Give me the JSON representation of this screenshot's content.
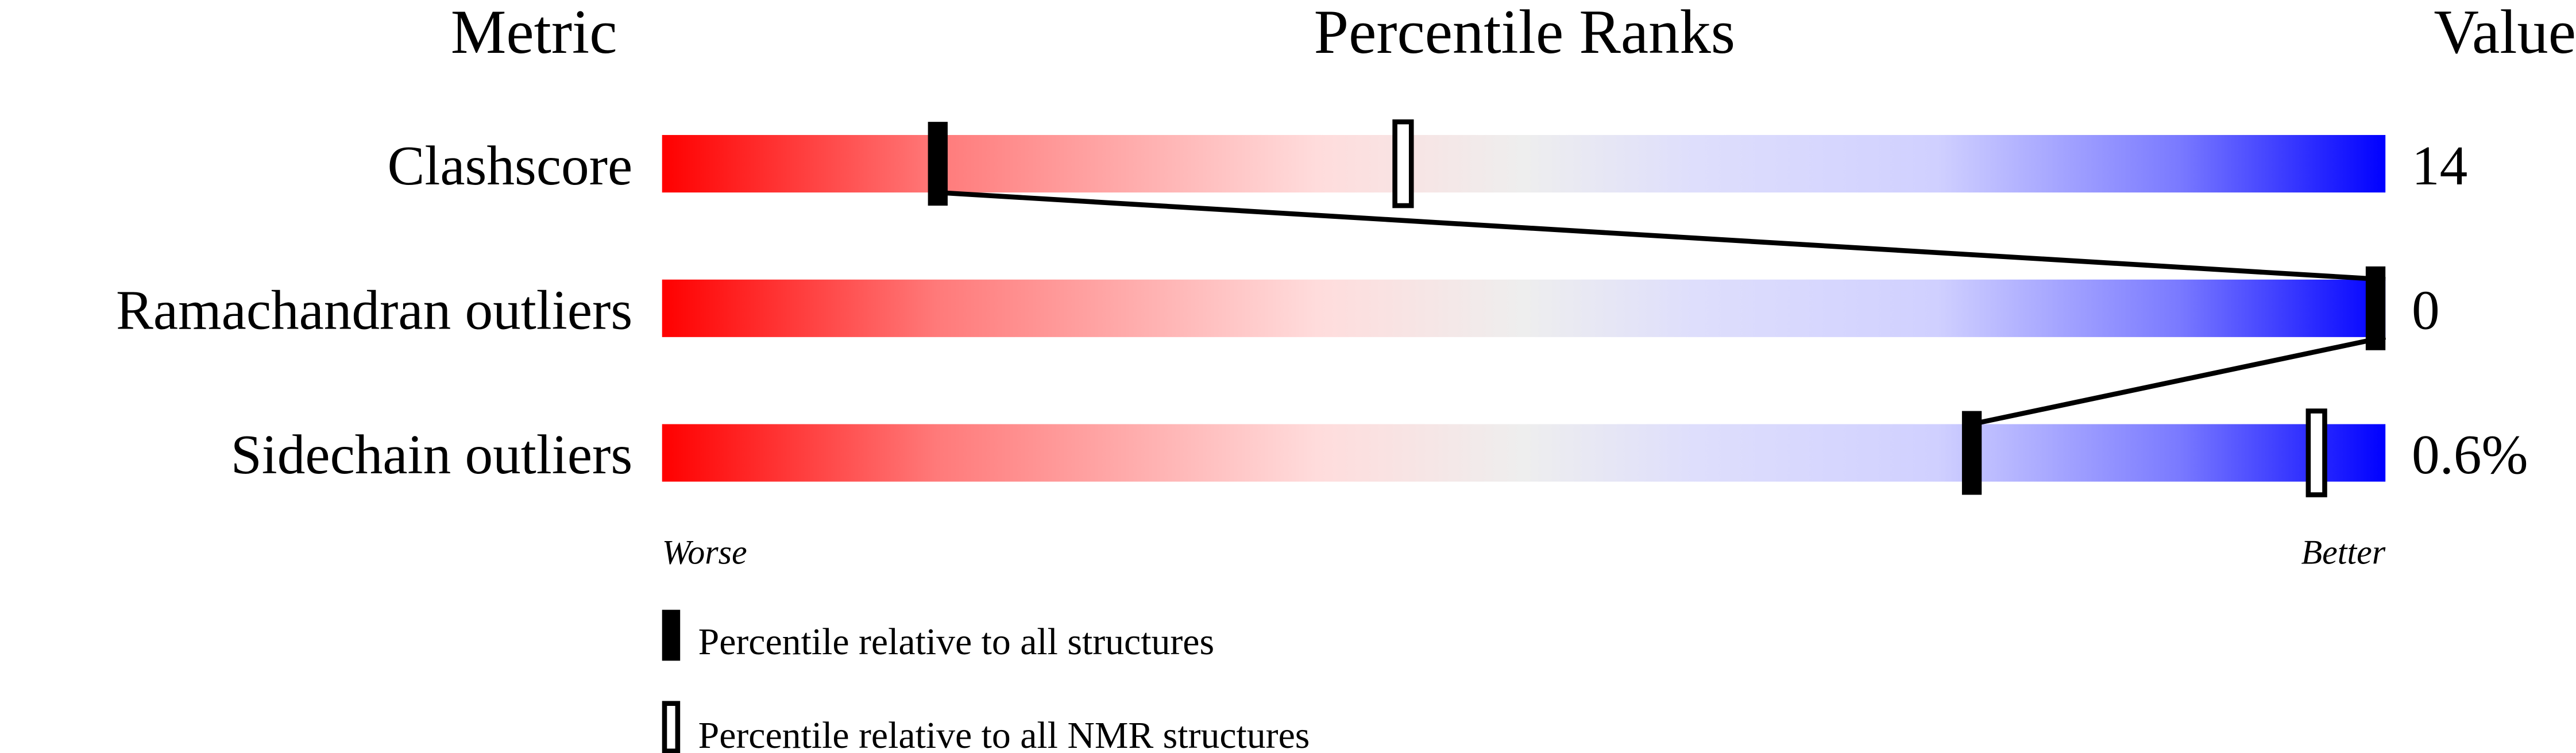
{
  "chart_data": {
    "type": "percentile-bar",
    "headers": {
      "metric": "Metric",
      "ranks": "Percentile Ranks",
      "value": "Value"
    },
    "xlim": [
      0,
      100
    ],
    "rows": [
      {
        "metric": "Clashscore",
        "value": "14",
        "percentile_all": 16,
        "percentile_nmr": 43
      },
      {
        "metric": "Ramachandran outliers",
        "value": "0",
        "percentile_all": 100,
        "percentile_nmr": 100
      },
      {
        "metric": "Sidechain outliers",
        "value": "0.6%",
        "percentile_all": 76,
        "percentile_nmr": 96
      }
    ],
    "axis": {
      "worse": "Worse",
      "better": "Better"
    },
    "legend": {
      "all": "Percentile relative to all structures",
      "nmr": "Percentile relative to all NMR structures"
    },
    "colors": {
      "worse": "#ff0000",
      "mid": "#eeeeee",
      "better": "#0000ff",
      "marker": "#000000"
    }
  }
}
